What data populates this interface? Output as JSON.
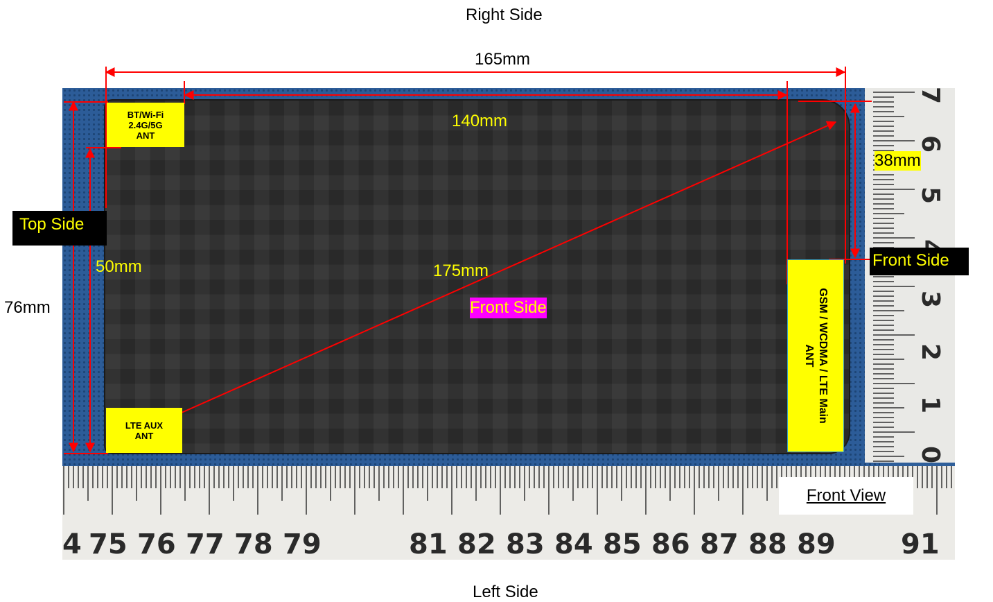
{
  "labels": {
    "right_side": "Right Side",
    "left_side": "Left Side",
    "top_side": "Top Side",
    "front_side_center": "Front Side",
    "front_side_right": "Front Side",
    "front_view": "Front View"
  },
  "dimensions": {
    "width_outer": "165mm",
    "width_inner": "140mm",
    "height_outer": "76mm",
    "height_inner": "50mm",
    "diagonal": "175mm",
    "right_edge": "38mm"
  },
  "antennas": {
    "bt_wifi": [
      "BT/Wi-Fi",
      "2.4G/5G",
      "ANT"
    ],
    "lte_aux": [
      "LTE AUX",
      "ANT"
    ],
    "gsm_main": [
      "GSM / WCDMA / LTE Main",
      "ANT"
    ]
  },
  "ruler_bottom": [
    "4",
    "75",
    "76",
    "77",
    "78",
    "79",
    "81",
    "82",
    "83",
    "84",
    "85",
    "86",
    "87",
    "88",
    "89",
    "91"
  ],
  "ruler_right": [
    "7",
    "6",
    "5",
    "4",
    "3",
    "2",
    "1",
    "0"
  ],
  "colors": {
    "annotation_line": "#ff0000",
    "dimension_text": "#ffff00",
    "antenna_box": "#ffff00",
    "highlight_magenta": "#ff00ff"
  }
}
